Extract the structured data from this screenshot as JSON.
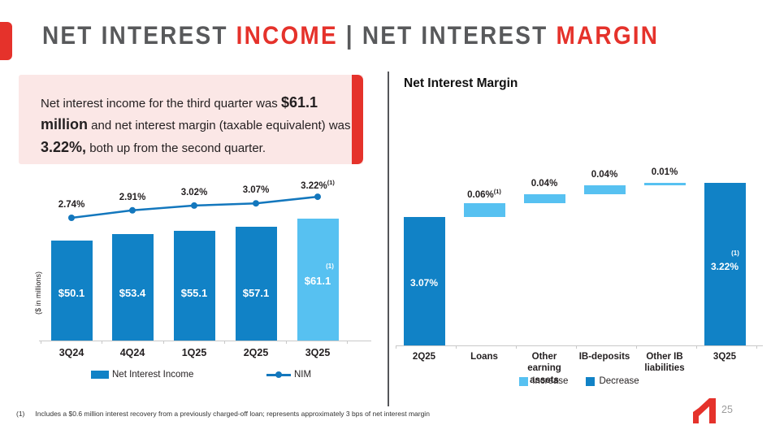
{
  "colors": {
    "dark_blue": "#1182C6",
    "light_blue": "#57C1F1",
    "line_blue": "#1377BD",
    "red": "#E5322B",
    "title_gray": "#58595B",
    "pink": "#FBE7E6",
    "text_dark": "#231F20",
    "axis_gray": "#C9C9C9",
    "divider_gray": "#55565A",
    "page_num_gray": "#9C9C9C"
  },
  "header": {
    "segments": [
      {
        "text": "NET INTEREST ",
        "accent": false
      },
      {
        "text": "INCOME",
        "accent": true
      },
      {
        "text": " | ",
        "accent": false
      },
      {
        "text": "NET INTEREST ",
        "accent": false
      },
      {
        "text": "MARGIN",
        "accent": true
      }
    ]
  },
  "callout": {
    "segments": [
      {
        "text": "Net interest income for the third quarter was ",
        "bold": false
      },
      {
        "text": "$61.1 million",
        "bold": true
      },
      {
        "text": " and net interest margin (taxable equivalent) was ",
        "bold": false
      },
      {
        "text": "3.22%,",
        "bold": true
      },
      {
        "text": " both up from the second quarter.",
        "bold": false
      }
    ]
  },
  "chart_data": [
    {
      "type": "bar",
      "categories": [
        "3Q24",
        "4Q24",
        "1Q25",
        "2Q25",
        "3Q25"
      ],
      "series": [
        {
          "name": "Net Interest Income",
          "type": "bar",
          "values": [
            50.1,
            53.4,
            55.1,
            57.1,
            61.1
          ],
          "labels": [
            "$50.1",
            "$53.4",
            "$55.1",
            "$57.1",
            "$61.1"
          ],
          "footnote": "(1)",
          "highlight_last": true
        },
        {
          "name": "NIM",
          "type": "line",
          "values": [
            2.74,
            2.91,
            3.02,
            3.07,
            3.22
          ],
          "labels": [
            "2.74%",
            "2.91%",
            "3.02%",
            "3.07%",
            "3.22%"
          ],
          "footnote": "(1)"
        }
      ],
      "ylabel": "($ in millions)",
      "ylim": [
        0,
        70
      ],
      "legend_position": "bottom",
      "grid": false
    },
    {
      "type": "waterfall",
      "title": "Net Interest Margin",
      "steps": [
        {
          "category_lines": [
            "2Q25"
          ],
          "value": 3.07,
          "kind": "total",
          "display": "3.07%"
        },
        {
          "category_lines": [
            "Loans"
          ],
          "value": 0.06,
          "kind": "increase",
          "display": "0.06%",
          "footnote": "(1)"
        },
        {
          "category_lines": [
            "Other earning",
            "assets"
          ],
          "value": 0.04,
          "kind": "increase",
          "display": "0.04%"
        },
        {
          "category_lines": [
            "IB-deposits"
          ],
          "value": 0.04,
          "kind": "increase",
          "display": "0.04%"
        },
        {
          "category_lines": [
            "Other IB",
            "liabilities"
          ],
          "value": 0.01,
          "kind": "increase",
          "display": "0.01%"
        },
        {
          "category_lines": [
            "3Q25"
          ],
          "value": 3.22,
          "kind": "total",
          "display": "3.22%",
          "footnote": "(1)"
        }
      ],
      "legend": [
        {
          "label": "Increase",
          "swatch": "light_blue"
        },
        {
          "label": "Decrease",
          "swatch": "dark_blue"
        }
      ],
      "legend_position": "bottom",
      "grid": false
    }
  ],
  "footer": {
    "footnote_marker": "(1)",
    "footnote_text": "Includes a $0.6 million interest recovery from a previously charged-off loan; represents approximately 3 bps of net interest margin",
    "page_number": "25",
    "logo": "company-logo"
  }
}
